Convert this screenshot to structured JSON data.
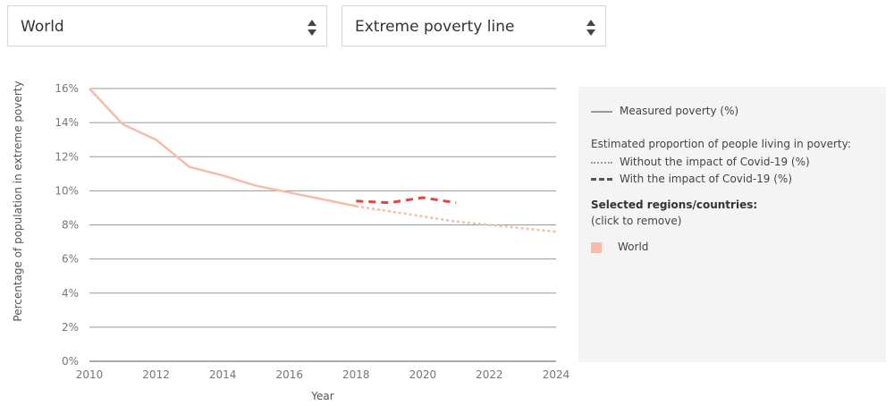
{
  "controls": {
    "region_select": {
      "value": "World"
    },
    "line_select": {
      "value": "Extreme poverty line"
    }
  },
  "legend": {
    "measured": "Measured poverty (%)",
    "estimated_heading": "Estimated proportion of people living in poverty:",
    "without_covid": "Without the impact of Covid-19 (%)",
    "with_covid": "With the impact of Covid-19 (%)",
    "selected_heading": "Selected regions/countries:",
    "click_to_remove": "(click to remove)",
    "selected_items": [
      "World"
    ]
  },
  "colors": {
    "measured_line": "#f5bcaa",
    "projection_without": "#f5bcaa",
    "projection_with": "#e0483f",
    "legend_gray": "#999999",
    "legend_dark": "#555555",
    "grid": "#999999"
  },
  "chart_data": {
    "type": "line",
    "xlabel": "Year",
    "ylabel": "Percentage of population in extreme poverty",
    "xlim": [
      2010,
      2024
    ],
    "ylim": [
      0,
      16
    ],
    "x_ticks": [
      2010,
      2012,
      2014,
      2016,
      2018,
      2020,
      2022,
      2024
    ],
    "y_ticks": [
      0,
      2,
      4,
      6,
      8,
      10,
      12,
      14,
      16
    ],
    "y_tick_labels": [
      "0%",
      "2%",
      "4%",
      "6%",
      "8%",
      "10%",
      "12%",
      "14%",
      "16%"
    ],
    "grid": "horizontal",
    "series": [
      {
        "name": "Measured poverty (%)",
        "style": "solid",
        "x": [
          2010,
          2011,
          2012,
          2013,
          2014,
          2015,
          2016,
          2017,
          2018
        ],
        "y": [
          16.0,
          13.9,
          13.0,
          11.4,
          10.9,
          10.3,
          9.9,
          9.5,
          9.1
        ]
      },
      {
        "name": "Without the impact of Covid-19 (%)",
        "style": "dotted",
        "x": [
          2018,
          2019,
          2020,
          2021,
          2022,
          2023,
          2024
        ],
        "y": [
          9.1,
          8.8,
          8.5,
          8.2,
          8.0,
          7.8,
          7.6
        ]
      },
      {
        "name": "With the impact of Covid-19 (%)",
        "style": "dashed",
        "x": [
          2018,
          2019,
          2020,
          2021
        ],
        "y": [
          9.4,
          9.3,
          9.6,
          9.3
        ]
      }
    ]
  }
}
